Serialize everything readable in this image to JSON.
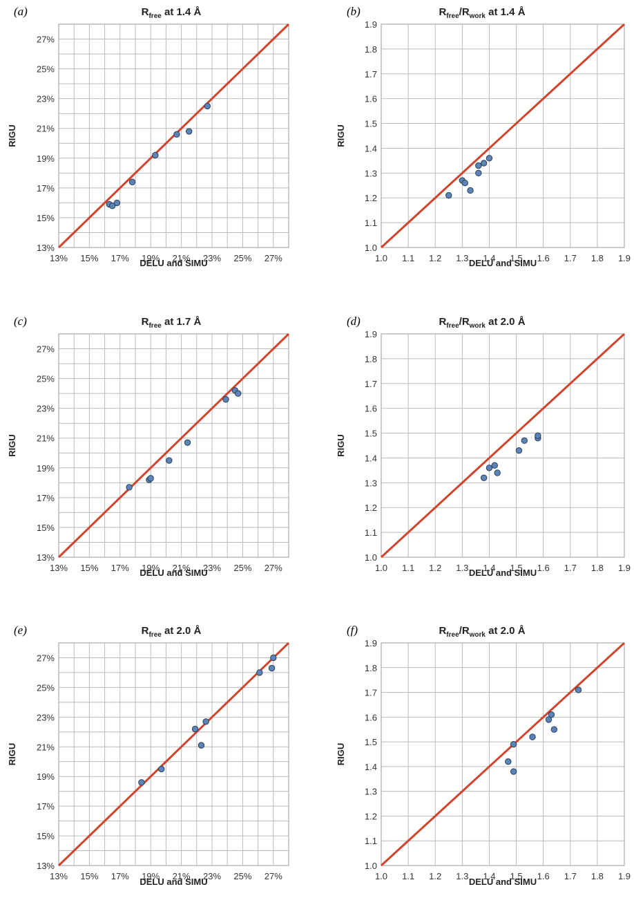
{
  "chart_data": [
    {
      "type": "scatter",
      "panel": "(a)",
      "title": "R",
      "title_sub": "free",
      "title_rest": " at 1.4 Å",
      "xlabel": "DELU and SIMU",
      "ylabel": "RIGU",
      "xlim": [
        13,
        28
      ],
      "ylim": [
        13,
        28
      ],
      "x_ticks": [
        "13%",
        "15%",
        "17%",
        "19%",
        "21%",
        "23%",
        "25%",
        "27%"
      ],
      "y_ticks": [
        "13%",
        "15%",
        "17%",
        "19%",
        "21%",
        "23%",
        "25%",
        "27%"
      ],
      "identity_line": true,
      "x": [
        16.3,
        16.5,
        16.8,
        17.8,
        19.3,
        20.7,
        21.5,
        22.7
      ],
      "y": [
        15.9,
        15.8,
        16.0,
        17.4,
        19.2,
        20.6,
        20.8,
        22.5
      ]
    },
    {
      "type": "scatter",
      "panel": "(b)",
      "title": "R",
      "title_sub": "free",
      "title_rest": "/R",
      "title_sub2": "work",
      "title_rest2": " at 1.4 Å",
      "xlabel": "DELU and SIMU",
      "ylabel": "RIGU",
      "xlim": [
        1.0,
        1.9
      ],
      "ylim": [
        1.0,
        1.9
      ],
      "x_ticks": [
        "1.0",
        "1.1",
        "1.2",
        "1.3",
        "1.4",
        "1.5",
        "1.6",
        "1.7",
        "1.8",
        "1.9"
      ],
      "y_ticks": [
        "1.0",
        "1.1",
        "1.2",
        "1.3",
        "1.4",
        "1.5",
        "1.6",
        "1.7",
        "1.8",
        "1.9"
      ],
      "identity_line": true,
      "x": [
        1.25,
        1.3,
        1.31,
        1.33,
        1.36,
        1.36,
        1.38,
        1.4
      ],
      "y": [
        1.21,
        1.27,
        1.26,
        1.23,
        1.3,
        1.33,
        1.34,
        1.36
      ]
    },
    {
      "type": "scatter",
      "panel": "(c)",
      "title": "R",
      "title_sub": "free",
      "title_rest": " at 1.7 Å",
      "xlabel": "DELU and SIMU",
      "ylabel": "RIGU",
      "xlim": [
        13,
        28
      ],
      "ylim": [
        13,
        28
      ],
      "x_ticks": [
        "13%",
        "15%",
        "17%",
        "19%",
        "21%",
        "23%",
        "25%",
        "27%"
      ],
      "y_ticks": [
        "13%",
        "15%",
        "17%",
        "19%",
        "21%",
        "23%",
        "25%",
        "27%"
      ],
      "identity_line": true,
      "x": [
        17.6,
        18.9,
        19.0,
        20.2,
        21.4,
        23.9,
        24.5,
        24.7
      ],
      "y": [
        17.7,
        18.2,
        18.3,
        19.5,
        20.7,
        23.6,
        24.2,
        24.0
      ]
    },
    {
      "type": "scatter",
      "panel": "(d)",
      "title": "R",
      "title_sub": "free",
      "title_rest": "/R",
      "title_sub2": "work",
      "title_rest2": " at 2.0 Å",
      "xlabel": "DELU and SIMU",
      "ylabel": "RIGU",
      "xlim": [
        1.0,
        1.9
      ],
      "ylim": [
        1.0,
        1.9
      ],
      "x_ticks": [
        "1.0",
        "1.1",
        "1.2",
        "1.3",
        "1.4",
        "1.5",
        "1.6",
        "1.7",
        "1.8",
        "1.9"
      ],
      "y_ticks": [
        "1.0",
        "1.1",
        "1.2",
        "1.3",
        "1.4",
        "1.5",
        "1.6",
        "1.7",
        "1.8",
        "1.9"
      ],
      "identity_line": true,
      "x": [
        1.38,
        1.4,
        1.42,
        1.43,
        1.51,
        1.53,
        1.58,
        1.58
      ],
      "y": [
        1.32,
        1.36,
        1.37,
        1.34,
        1.43,
        1.47,
        1.48,
        1.49
      ]
    },
    {
      "type": "scatter",
      "panel": "(e)",
      "title": "R",
      "title_sub": "free",
      "title_rest": " at 2.0 Å",
      "xlabel": "DELU and SIMU",
      "ylabel": "RIGU",
      "xlim": [
        13,
        28
      ],
      "ylim": [
        13,
        28
      ],
      "x_ticks": [
        "13%",
        "15%",
        "17%",
        "19%",
        "21%",
        "23%",
        "25%",
        "27%"
      ],
      "y_ticks": [
        "13%",
        "15%",
        "17%",
        "19%",
        "21%",
        "23%",
        "25%",
        "27%"
      ],
      "identity_line": true,
      "x": [
        18.4,
        19.7,
        21.9,
        22.3,
        22.6,
        26.1,
        26.9,
        27.0
      ],
      "y": [
        18.6,
        19.5,
        22.2,
        21.1,
        22.7,
        26.0,
        26.3,
        27.0
      ]
    },
    {
      "type": "scatter",
      "panel": "(f)",
      "title": "R",
      "title_sub": "free",
      "title_rest": "/R",
      "title_sub2": "work",
      "title_rest2": " at 2.0 Å",
      "xlabel": "DELU and SIMU",
      "ylabel": "RIGU",
      "xlim": [
        1.0,
        1.9
      ],
      "ylim": [
        1.0,
        1.9
      ],
      "x_ticks": [
        "1.0",
        "1.1",
        "1.2",
        "1.3",
        "1.4",
        "1.5",
        "1.6",
        "1.7",
        "1.8",
        "1.9"
      ],
      "y_ticks": [
        "1.0",
        "1.1",
        "1.2",
        "1.3",
        "1.4",
        "1.5",
        "1.6",
        "1.7",
        "1.8",
        "1.9"
      ],
      "identity_line": true,
      "x": [
        1.47,
        1.49,
        1.49,
        1.56,
        1.62,
        1.63,
        1.64,
        1.73
      ],
      "y": [
        1.42,
        1.49,
        1.38,
        1.52,
        1.59,
        1.61,
        1.55,
        1.71
      ]
    }
  ],
  "colors": {
    "identity_line": "#d0432c",
    "point_fill": "#5b85b8",
    "point_stroke": "#2b3d55",
    "grid": "#b9b9b9"
  }
}
